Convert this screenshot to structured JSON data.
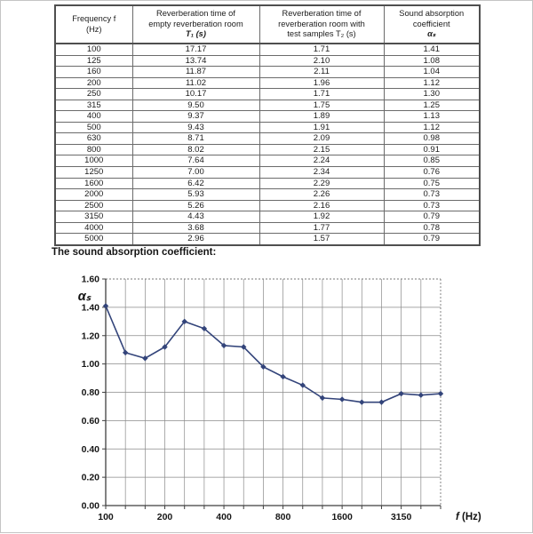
{
  "section_title": "The sound absorption coefficient:",
  "table": {
    "headers": [
      {
        "lines": [
          "Frequency f",
          "(Hz)"
        ]
      },
      {
        "lines": [
          "Reverberation time of",
          "empty reverberation room",
          "T₁ (s)"
        ]
      },
      {
        "lines": [
          "Reverberation time of",
          "reverberation room with",
          "test samples T₂ (s)"
        ]
      },
      {
        "lines": [
          "Sound absorption",
          "coefficient",
          "αₛ"
        ]
      }
    ],
    "rows": [
      [
        "100",
        "17.17",
        "1.71",
        "1.41"
      ],
      [
        "125",
        "13.74",
        "2.10",
        "1.08"
      ],
      [
        "160",
        "11.87",
        "2.11",
        "1.04"
      ],
      [
        "200",
        "11.02",
        "1.96",
        "1.12"
      ],
      [
        "250",
        "10.17",
        "1.71",
        "1.30"
      ],
      [
        "315",
        "9.50",
        "1.75",
        "1.25"
      ],
      [
        "400",
        "9.37",
        "1.89",
        "1.13"
      ],
      [
        "500",
        "9.43",
        "1.91",
        "1.12"
      ],
      [
        "630",
        "8.71",
        "2.09",
        "0.98"
      ],
      [
        "800",
        "8.02",
        "2.15",
        "0.91"
      ],
      [
        "1000",
        "7.64",
        "2.24",
        "0.85"
      ],
      [
        "1250",
        "7.00",
        "2.34",
        "0.76"
      ],
      [
        "1600",
        "6.42",
        "2.29",
        "0.75"
      ],
      [
        "2000",
        "5.93",
        "2.26",
        "0.73"
      ],
      [
        "2500",
        "5.26",
        "2.16",
        "0.73"
      ],
      [
        "3150",
        "4.43",
        "1.92",
        "0.79"
      ],
      [
        "4000",
        "3.68",
        "1.77",
        "0.78"
      ],
      [
        "5000",
        "2.96",
        "1.57",
        "0.79"
      ]
    ]
  },
  "chart_data": {
    "type": "line",
    "title": "The sound absorption coefficient:",
    "x_categories": [
      "100",
      "125",
      "160",
      "200",
      "250",
      "315",
      "400",
      "500",
      "630",
      "800",
      "1000",
      "1250",
      "1600",
      "2000",
      "2500",
      "3150",
      "4000",
      "5000"
    ],
    "values": [
      1.41,
      1.08,
      1.04,
      1.12,
      1.3,
      1.25,
      1.13,
      1.12,
      0.98,
      0.91,
      0.85,
      0.76,
      0.75,
      0.73,
      0.73,
      0.79,
      0.78,
      0.79
    ],
    "ylabel": "αₛ",
    "xlabel": "f (Hz)",
    "ylim": [
      0.0,
      1.6
    ],
    "ytick_labels": [
      "0.00",
      "0.20",
      "0.40",
      "0.60",
      "0.80",
      "1.00",
      "1.20",
      "1.40",
      "1.60"
    ],
    "xtick_label_every": 3,
    "xtick_labels_shown": [
      "100",
      "200",
      "400",
      "800",
      "1600",
      "3150"
    ],
    "grid": true,
    "legend": "none",
    "line_color": "#33447a",
    "grid_color": "#8a8a8a",
    "axis_color": "#3f3f3f",
    "marker": "diamond"
  }
}
